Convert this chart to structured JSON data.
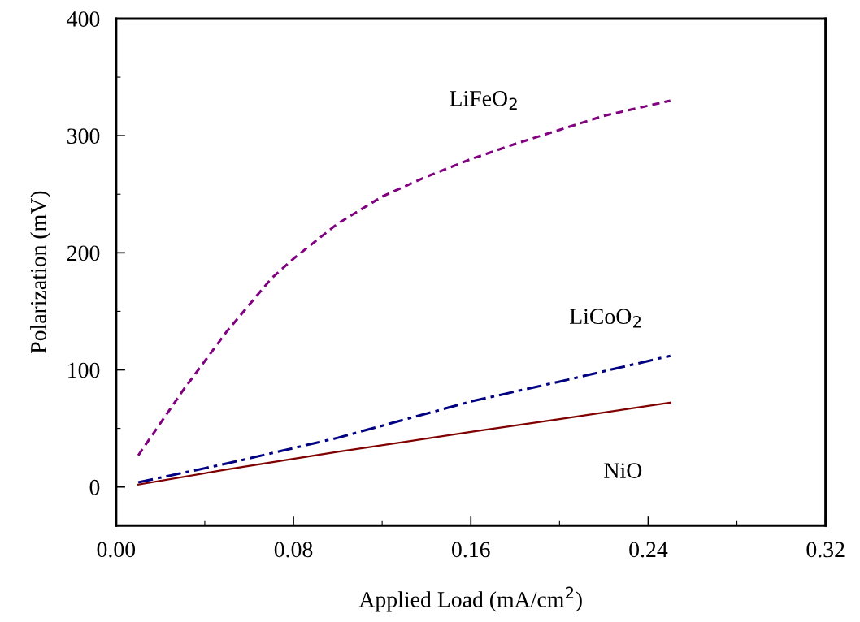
{
  "chart_data": {
    "type": "line",
    "xlabel": "Applied Load (mA/cm$^{2}$)",
    "ylabel": "Polarization (mV)",
    "xlim": [
      0,
      0.32
    ],
    "xticks": [
      {
        "value": 0,
        "label": "0.00"
      },
      {
        "value": 0.08,
        "label": "0.08"
      },
      {
        "value": 0.16,
        "label": "0.16"
      },
      {
        "value": 0.24,
        "label": "0.24"
      },
      {
        "value": 0.32,
        "label": "0.32"
      }
    ],
    "ylim": [
      -33,
      400
    ],
    "yticks": [
      0,
      100,
      200,
      300,
      400
    ],
    "grid": false,
    "legend": false,
    "marker": "none",
    "series": [
      {
        "name": "LiFeO$_{2}$",
        "color": "#800080",
        "line_style": "dashed",
        "x": [
          0.01,
          0.03,
          0.05,
          0.07,
          0.08,
          0.1,
          0.12,
          0.14,
          0.16,
          0.18,
          0.2,
          0.22,
          0.25
        ],
        "values": [
          27,
          82,
          133,
          178,
          195,
          225,
          248,
          265,
          280,
          293,
          305,
          317,
          330
        ]
      },
      {
        "name": "LiCoO$_{2}$",
        "color": "#000080",
        "line_style": "dashdot",
        "x": [
          0.01,
          0.05,
          0.1,
          0.16,
          0.2,
          0.25
        ],
        "values": [
          4,
          20,
          42,
          73,
          90,
          112
        ]
      },
      {
        "name": "NiO",
        "color": "#800000",
        "line_style": "solid",
        "x": [
          0.01,
          0.05,
          0.1,
          0.16,
          0.2,
          0.25
        ],
        "values": [
          2,
          15,
          30,
          47,
          58,
          72
        ]
      }
    ]
  }
}
